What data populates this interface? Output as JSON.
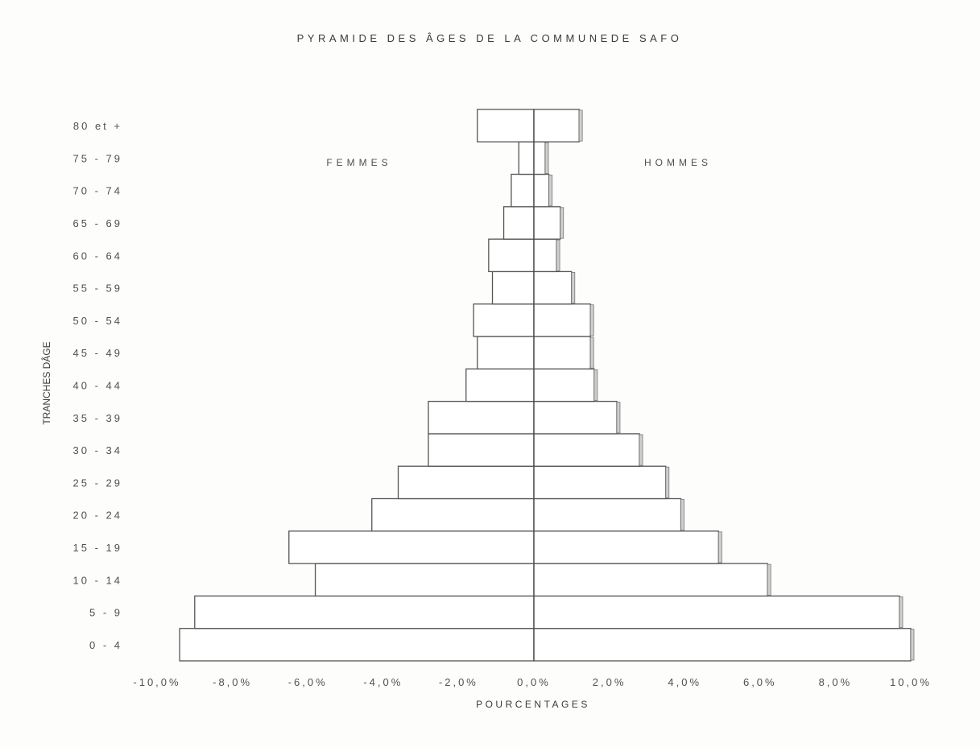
{
  "chart_data": {
    "type": "bar",
    "orientation": "horizontal",
    "title": "PYRAMIDE DES ÂGES DE LA COMMUNEDE SAFO",
    "xlabel": "POURCENTAGES",
    "ylabel": "TRANCHES DÂGE",
    "xlim": [
      -10,
      10
    ],
    "x_ticks": [
      "-10,0%",
      "-8,0%",
      "-6,0%",
      "-4,0%",
      "-2,0%",
      "0,0%",
      "2,0%",
      "4,0%",
      "6,0%",
      "8,0%",
      "10,0%"
    ],
    "categories": [
      "0 - 4",
      "5 - 9",
      "10 - 14",
      "15 - 19",
      "20 - 24",
      "25 - 29",
      "30 - 34",
      "35 - 39",
      "40 - 44",
      "45 - 49",
      "50 - 54",
      "55 - 59",
      "60 - 64",
      "65 - 69",
      "70 - 74",
      "75 - 79",
      "80 et +"
    ],
    "series": [
      {
        "name": "FEMMES",
        "values": [
          -9.4,
          -9.0,
          -5.8,
          -6.5,
          -4.3,
          -3.6,
          -2.8,
          -2.8,
          -1.8,
          -1.5,
          -1.6,
          -1.1,
          -1.2,
          -0.8,
          -0.6,
          -0.4,
          -1.5
        ]
      },
      {
        "name": "HOMMES",
        "values": [
          10.0,
          9.7,
          6.2,
          4.9,
          3.9,
          3.5,
          2.8,
          2.2,
          1.6,
          1.5,
          1.5,
          1.0,
          0.6,
          0.7,
          0.4,
          0.3,
          1.2
        ]
      }
    ],
    "grid": false,
    "legend": "none"
  }
}
